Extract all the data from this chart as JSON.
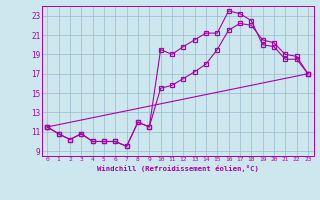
{
  "xlabel": "Windchill (Refroidissement éolien,°C)",
  "bg_color": "#cce8ee",
  "line_color": "#aa00aa",
  "grid_color": "#99bbcc",
  "xlim": [
    -0.5,
    23.5
  ],
  "ylim": [
    8.5,
    24.0
  ],
  "xticks": [
    0,
    1,
    2,
    3,
    4,
    5,
    6,
    7,
    8,
    9,
    10,
    11,
    12,
    13,
    14,
    15,
    16,
    17,
    18,
    19,
    20,
    21,
    22,
    23
  ],
  "yticks": [
    9,
    11,
    13,
    15,
    17,
    19,
    21,
    23
  ],
  "line1_x": [
    0,
    1,
    2,
    3,
    4,
    5,
    6,
    7,
    8,
    9,
    10,
    11,
    12,
    13,
    14,
    15,
    16,
    17,
    18,
    19,
    20,
    21,
    22,
    23
  ],
  "line1_y": [
    11.5,
    10.8,
    10.2,
    10.8,
    10.0,
    10.0,
    10.0,
    9.5,
    12.0,
    11.5,
    19.5,
    19.0,
    19.8,
    20.5,
    21.2,
    21.2,
    23.5,
    23.2,
    22.5,
    20.0,
    19.8,
    18.5,
    18.5,
    17.0
  ],
  "line2_x": [
    0,
    1,
    2,
    3,
    4,
    5,
    6,
    7,
    8,
    9,
    10,
    11,
    12,
    13,
    14,
    15,
    16,
    17,
    18,
    19,
    20,
    21,
    22,
    23
  ],
  "line2_y": [
    11.5,
    10.8,
    10.2,
    10.8,
    10.0,
    10.0,
    10.0,
    9.5,
    12.0,
    11.5,
    15.5,
    15.8,
    16.5,
    17.2,
    18.0,
    19.5,
    21.5,
    22.2,
    22.0,
    20.5,
    20.2,
    19.0,
    18.8,
    17.0
  ],
  "line3_x": [
    0,
    23
  ],
  "line3_y": [
    11.5,
    17.0
  ]
}
